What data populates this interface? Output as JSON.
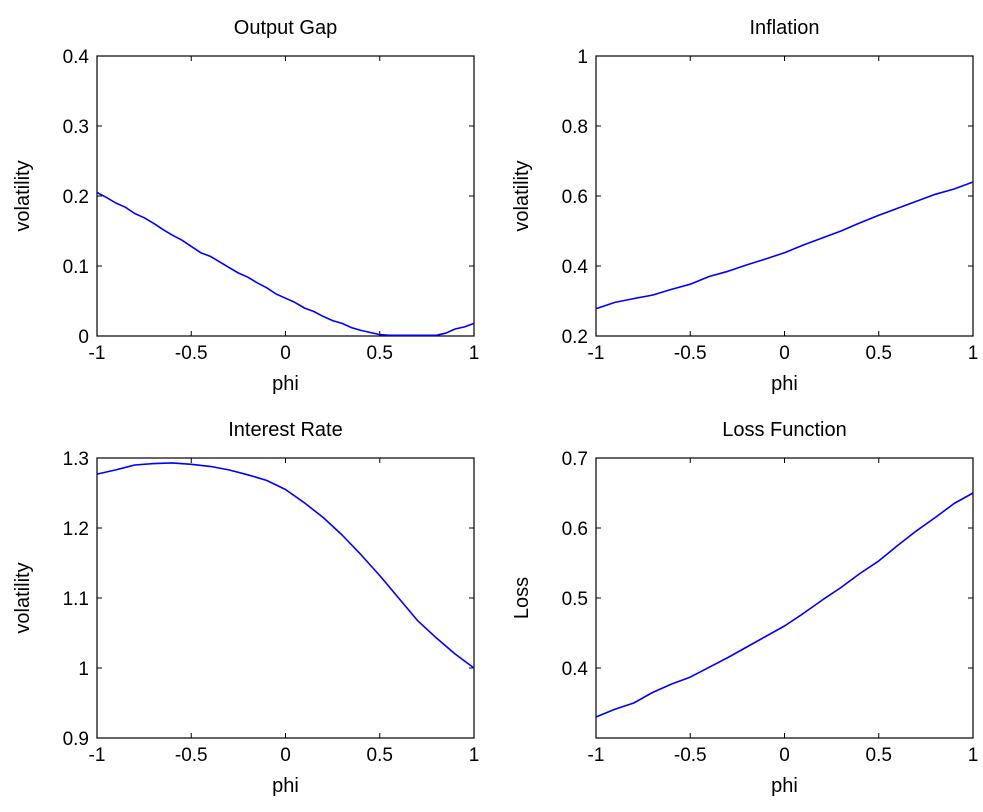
{
  "figure": {
    "line_color": "#0000ff",
    "axis_color": "#000000",
    "background": "#ffffff"
  },
  "chart_data": [
    {
      "type": "line",
      "title": "Output Gap",
      "xlabel": "phi",
      "ylabel": "volatility",
      "xlim": [
        -1,
        1
      ],
      "ylim": [
        0,
        0.4
      ],
      "xticks": [
        "-1",
        "-0.5",
        "0",
        "0.5",
        "1"
      ],
      "yticks": [
        "0",
        "0.1",
        "0.2",
        "0.3",
        "0.4"
      ],
      "grid": false,
      "series": [
        {
          "x": [
            -1,
            -0.95,
            -0.9,
            -0.85,
            -0.8,
            -0.75,
            -0.7,
            -0.65,
            -0.6,
            -0.55,
            -0.5,
            -0.45,
            -0.4,
            -0.35,
            -0.3,
            -0.25,
            -0.2,
            -0.15,
            -0.1,
            -0.05,
            0,
            0.05,
            0.1,
            0.15,
            0.2,
            0.25,
            0.3,
            0.35,
            0.4,
            0.45,
            0.5,
            0.55,
            0.6,
            0.65,
            0.7,
            0.75,
            0.8,
            0.85,
            0.9,
            0.95,
            1
          ],
          "y": [
            0.205,
            0.198,
            0.19,
            0.184,
            0.175,
            0.169,
            0.161,
            0.152,
            0.144,
            0.137,
            0.128,
            0.119,
            0.114,
            0.106,
            0.098,
            0.09,
            0.084,
            0.076,
            0.069,
            0.06,
            0.054,
            0.048,
            0.04,
            0.035,
            0.028,
            0.022,
            0.018,
            0.012,
            0.008,
            0.005,
            0.002,
            0.001,
            0.001,
            0.001,
            0.001,
            0.001,
            0.001,
            0.004,
            0.01,
            0.013,
            0.018
          ]
        }
      ]
    },
    {
      "type": "line",
      "title": "Inflation",
      "xlabel": "phi",
      "ylabel": "volatility",
      "xlim": [
        -1,
        1
      ],
      "ylim": [
        0.2,
        1
      ],
      "xticks": [
        "-1",
        "-0.5",
        "0",
        "0.5",
        "1"
      ],
      "yticks": [
        "0.2",
        "0.4",
        "0.6",
        "0.8",
        "1"
      ],
      "grid": false,
      "series": [
        {
          "x": [
            -1,
            -0.9,
            -0.8,
            -0.7,
            -0.6,
            -0.5,
            -0.4,
            -0.3,
            -0.2,
            -0.1,
            0,
            0.1,
            0.2,
            0.3,
            0.4,
            0.5,
            0.6,
            0.7,
            0.8,
            0.9,
            1
          ],
          "y": [
            0.278,
            0.296,
            0.307,
            0.317,
            0.333,
            0.348,
            0.37,
            0.385,
            0.403,
            0.42,
            0.438,
            0.46,
            0.48,
            0.5,
            0.523,
            0.545,
            0.565,
            0.585,
            0.605,
            0.62,
            0.64
          ]
        }
      ]
    },
    {
      "type": "line",
      "title": "Interest Rate",
      "xlabel": "phi",
      "ylabel": "volatility",
      "xlim": [
        -1,
        1
      ],
      "ylim": [
        0.9,
        1.3
      ],
      "xticks": [
        "-1",
        "-0.5",
        "0",
        "0.5",
        "1"
      ],
      "yticks": [
        "0.9",
        "1",
        "1.1",
        "1.2",
        "1.3"
      ],
      "grid": false,
      "series": [
        {
          "x": [
            -1,
            -0.9,
            -0.8,
            -0.7,
            -0.6,
            -0.5,
            -0.4,
            -0.3,
            -0.2,
            -0.1,
            0,
            0.1,
            0.2,
            0.3,
            0.4,
            0.5,
            0.6,
            0.7,
            0.8,
            0.9,
            1
          ],
          "y": [
            1.277,
            1.283,
            1.29,
            1.292,
            1.293,
            1.291,
            1.288,
            1.283,
            1.276,
            1.268,
            1.255,
            1.236,
            1.215,
            1.19,
            1.162,
            1.132,
            1.1,
            1.068,
            1.043,
            1.02,
            1.0
          ]
        }
      ]
    },
    {
      "type": "line",
      "title": "Loss Function",
      "xlabel": "phi",
      "ylabel": "Loss",
      "xlim": [
        -1,
        1
      ],
      "ylim": [
        0.3,
        0.7
      ],
      "xticks": [
        "-1",
        "-0.5",
        "0",
        "0.5",
        "1"
      ],
      "yticks": [
        "0.4",
        "0.5",
        "0.6",
        "0.7"
      ],
      "grid": false,
      "series": [
        {
          "x": [
            -1,
            -0.9,
            -0.8,
            -0.7,
            -0.6,
            -0.5,
            -0.4,
            -0.3,
            -0.2,
            -0.1,
            0,
            0.1,
            0.2,
            0.3,
            0.4,
            0.5,
            0.6,
            0.7,
            0.8,
            0.9,
            1
          ],
          "y": [
            0.33,
            0.341,
            0.35,
            0.365,
            0.377,
            0.387,
            0.401,
            0.415,
            0.43,
            0.445,
            0.46,
            0.478,
            0.497,
            0.515,
            0.535,
            0.553,
            0.575,
            0.596,
            0.615,
            0.635,
            0.65
          ]
        }
      ]
    }
  ]
}
